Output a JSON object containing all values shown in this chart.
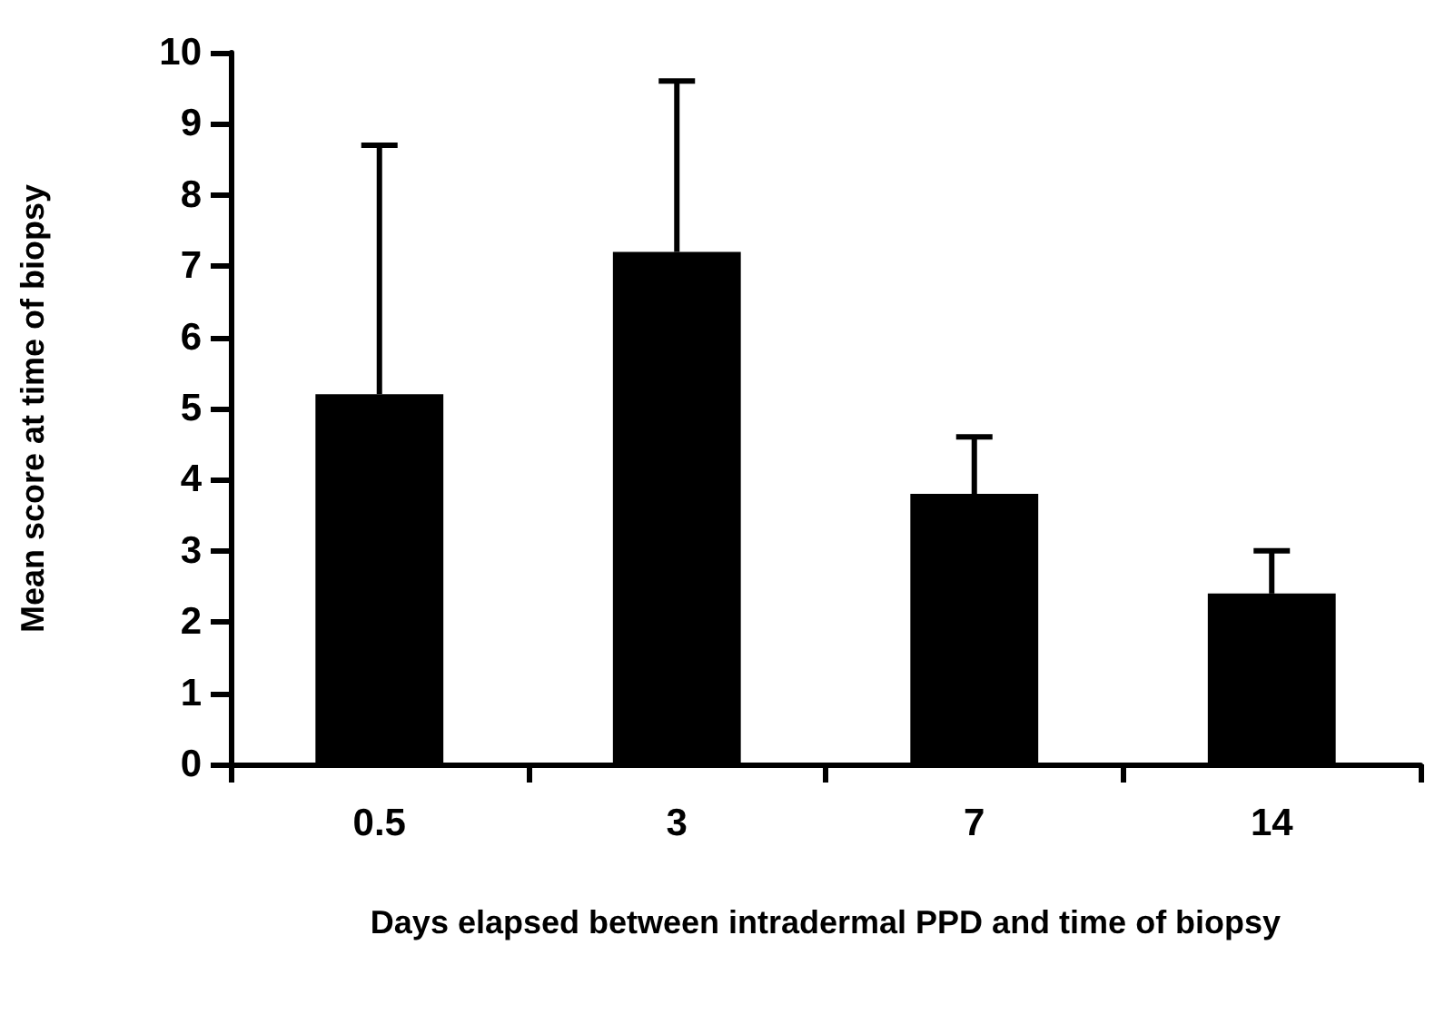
{
  "chart_data": {
    "type": "bar",
    "xlabel": "Days elapsed between intradermal PPD and time of biopsy",
    "ylabel": "Mean score at time of biopsy",
    "categories": [
      "0.5",
      "3",
      "7",
      "14"
    ],
    "values": [
      5.2,
      7.2,
      3.8,
      2.4
    ],
    "errors": [
      [
        5.2,
        8.7
      ],
      [
        7.2,
        9.6
      ],
      [
        3.8,
        4.6
      ],
      [
        2.4,
        3.0
      ]
    ],
    "color": "#000000",
    "ylim": [
      0,
      10
    ],
    "yticks": [
      0,
      1,
      2,
      3,
      4,
      5,
      6,
      7,
      8,
      9,
      10
    ],
    "grid": false
  }
}
